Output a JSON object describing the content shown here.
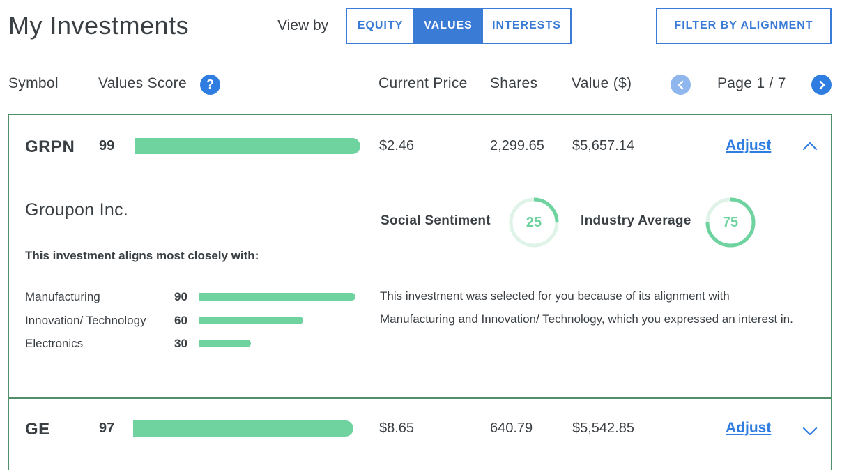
{
  "header": {
    "title": "My Investments",
    "view_by_label": "View by",
    "view_options": [
      "EQUITY",
      "VALUES",
      "INTERESTS"
    ],
    "selected_view": "VALUES",
    "filter_label": "FILTER BY ALIGNMENT"
  },
  "columns": {
    "symbol": "Symbol",
    "values_score": "Values Score",
    "help_icon": "?",
    "current_price": "Current Price",
    "shares": "Shares",
    "value": "Value ($)"
  },
  "pagination": {
    "label": "Page 1 / 7",
    "current": 1,
    "total": 7,
    "prev_icon": "chevron-left-icon",
    "next_icon": "chevron-right-icon"
  },
  "investments": [
    {
      "symbol": "GRPN",
      "score": "99",
      "score_value": 99,
      "price": "$2.46",
      "shares": "2,299.65",
      "value": "$5,657.14",
      "adjust_label": "Adjust",
      "expanded": true,
      "company": "Groupon Inc.",
      "aligns_heading": "This investment aligns most closely with:",
      "alignments": [
        {
          "name": "Manufacturing",
          "score": "90",
          "value": 90
        },
        {
          "name": "Innovation/ Technology",
          "score": "60",
          "value": 60
        },
        {
          "name": "Electronics",
          "score": "30",
          "value": 30
        }
      ],
      "social_sentiment_label": "Social Sentiment",
      "social_sentiment": "25",
      "social_sentiment_value": 25,
      "industry_average_label": "Industry Average",
      "industry_average": "75",
      "industry_average_value": 75,
      "description": "This investment was selected for you because of its alignment with Manufacturing and Innovation/ Technology, which you expressed an interest in."
    },
    {
      "symbol": "GE",
      "score": "97",
      "score_value": 97,
      "price": "$8.65",
      "shares": "640.79",
      "value": "$5,542.85",
      "adjust_label": "Adjust",
      "expanded": false
    }
  ],
  "colors": {
    "accent": "#2f7de1",
    "bar_green": "#6fd3a0",
    "ring_track": "#dff3e9",
    "border_green": "#4f8f6a"
  }
}
